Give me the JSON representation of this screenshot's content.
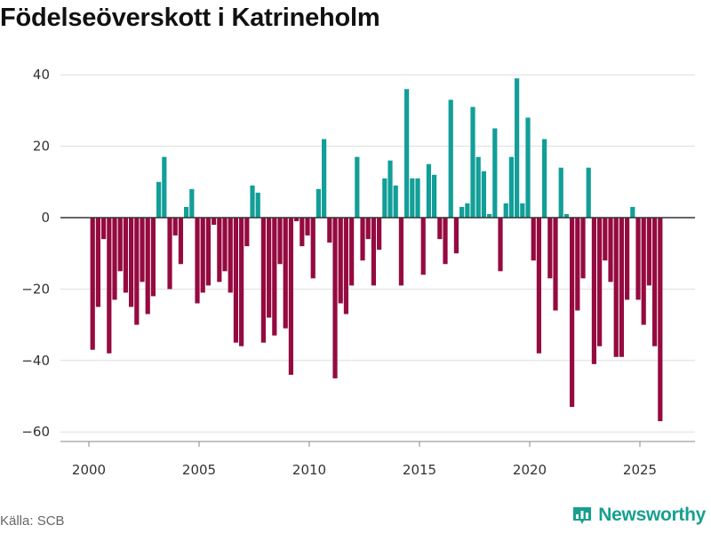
{
  "page": {
    "title": "Födelseöverskott i Katrineholm",
    "source": "Källa: SCB",
    "brand": "Newsworthy"
  },
  "colors": {
    "positive": "#119f98",
    "negative": "#950a40",
    "grid": "#dddddd",
    "zero_line": "#333333",
    "brand": "#16a090"
  },
  "chart_data": {
    "type": "bar",
    "title": "Födelseöverskott i Katrineholm",
    "xlabel": "",
    "ylabel": "",
    "x_unit": "month (plotted at year + (month-1)/12, quarterly cadence)",
    "xlim": [
      1999,
      2027.3
    ],
    "ylim": [
      -65,
      43
    ],
    "x_ticks": [
      2000,
      2005,
      2010,
      2015,
      2020,
      2025
    ],
    "y_ticks": [
      -60,
      -40,
      -20,
      0,
      20,
      40
    ],
    "y_tick_labels": [
      "−60",
      "−40",
      "−20",
      "0",
      "20",
      "40"
    ],
    "x_tick_labels": [
      "2000",
      "2005",
      "2010",
      "2015",
      "2020",
      "2025"
    ],
    "grid": true,
    "legend": "none",
    "x": [
      2000.17,
      2000.42,
      2000.67,
      2000.92,
      2001.17,
      2001.42,
      2001.67,
      2001.92,
      2002.17,
      2002.42,
      2002.67,
      2002.92,
      2003.17,
      2003.42,
      2003.67,
      2003.92,
      2004.17,
      2004.42,
      2004.67,
      2004.92,
      2005.17,
      2005.42,
      2005.67,
      2005.92,
      2006.17,
      2006.42,
      2006.67,
      2006.92,
      2007.17,
      2007.42,
      2007.67,
      2007.92,
      2008.17,
      2008.42,
      2008.67,
      2008.92,
      2009.17,
      2009.42,
      2009.67,
      2009.92,
      2010.17,
      2010.42,
      2010.67,
      2010.92,
      2011.17,
      2011.42,
      2011.67,
      2011.92,
      2012.17,
      2012.42,
      2012.67,
      2012.92,
      2013.17,
      2013.42,
      2013.67,
      2013.92,
      2014.17,
      2014.42,
      2014.67,
      2014.92,
      2015.17,
      2015.42,
      2015.67,
      2015.92,
      2016.17,
      2016.42,
      2016.67,
      2016.92,
      2017.17,
      2017.42,
      2017.67,
      2017.92,
      2018.17,
      2018.42,
      2018.67,
      2018.92,
      2019.17,
      2019.42,
      2019.67,
      2019.92,
      2020.17,
      2020.42,
      2020.67,
      2020.92,
      2021.17,
      2021.42,
      2021.67,
      2021.92,
      2022.17,
      2022.42,
      2022.67,
      2022.92,
      2023.17,
      2023.42,
      2023.67,
      2023.92,
      2024.17,
      2024.42,
      2024.67,
      2024.92,
      2025.17,
      2025.42,
      2025.67,
      2025.92
    ],
    "values": [
      -37,
      -25,
      -6,
      -38,
      -23,
      -15,
      -21,
      -25,
      -30,
      -18,
      -27,
      -22,
      10,
      17,
      -20,
      -5,
      -13,
      3,
      8,
      -24,
      -21,
      -19,
      -2,
      -18,
      -15,
      -21,
      -35,
      -36,
      -8,
      9,
      7,
      -35,
      -28,
      -33,
      -13,
      -31,
      -44,
      -1,
      -8,
      -5,
      -17,
      8,
      22,
      -7,
      -45,
      -24,
      -27,
      -19,
      17,
      -12,
      -6,
      -19,
      -9,
      11,
      16,
      9,
      -19,
      36,
      11,
      11,
      -16,
      15,
      12,
      -6,
      -13,
      33,
      -10,
      3,
      4,
      31,
      17,
      13,
      1,
      25,
      -15,
      4,
      17,
      39,
      4,
      28,
      -12,
      -38,
      22,
      -17,
      -26,
      14,
      1,
      -53,
      -26,
      -17,
      14,
      -41,
      -36,
      -12,
      -18,
      -39,
      -39,
      -23,
      3,
      -23,
      -30,
      -19,
      -36,
      -57
    ]
  }
}
